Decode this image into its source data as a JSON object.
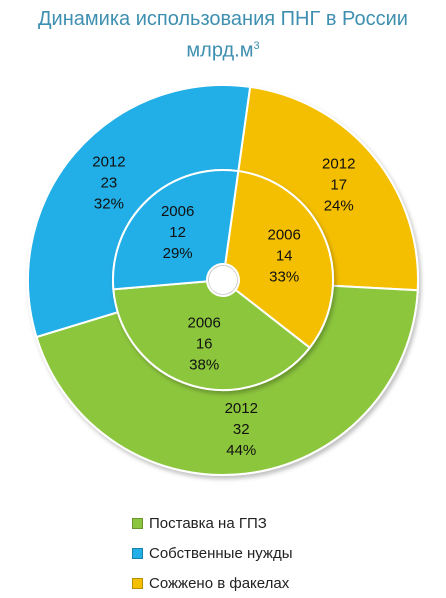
{
  "title": {
    "line1": "Динамика использования ПНГ в России",
    "line2": "млрд.м",
    "sup": "3"
  },
  "colors": {
    "green": "#8cc63e",
    "blue": "#22aee6",
    "yellow": "#f4bf00"
  },
  "chart_data": {
    "type": "donut",
    "series": [
      {
        "name": "2006",
        "ring": "inner",
        "slices": [
          {
            "category": "Поставка на ГПЗ",
            "year": "2006",
            "value": 16,
            "percent": "38%"
          },
          {
            "category": "Собственные нужды",
            "year": "2006",
            "value": 12,
            "percent": "29%"
          },
          {
            "category": "Сожжено в факелах",
            "year": "2006",
            "value": 14,
            "percent": "33%"
          }
        ]
      },
      {
        "name": "2012",
        "ring": "outer",
        "slices": [
          {
            "category": "Поставка на ГПЗ",
            "year": "2012",
            "value": 32,
            "percent": "44%"
          },
          {
            "category": "Собственные нужды",
            "year": "2012",
            "value": 23,
            "percent": "32%"
          },
          {
            "category": "Сожжено в факелах",
            "year": "2012",
            "value": 17,
            "percent": "24%"
          }
        ]
      }
    ],
    "legend": {
      "position": "bottom",
      "items": [
        {
          "label": "Поставка на ГПЗ",
          "color": "#8cc63e"
        },
        {
          "label": "Собственные нужды",
          "color": "#22aee6"
        },
        {
          "label": "Сожжено в факелах",
          "color": "#f4bf00"
        }
      ]
    }
  }
}
